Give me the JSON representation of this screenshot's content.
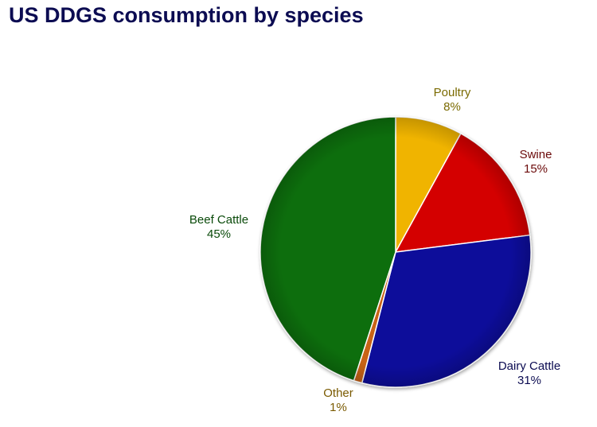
{
  "title": "US DDGS consumption by species",
  "chart_data": {
    "type": "pie",
    "title": "US DDGS consumption by species",
    "categories": [
      "Poultry",
      "Swine",
      "Dairy Cattle",
      "Other",
      "Beef Cattle"
    ],
    "values": [
      8,
      15,
      31,
      1,
      45
    ],
    "unit": "%",
    "colors": [
      "#f0b400",
      "#d40000",
      "#0a0a9a",
      "#c86414",
      "#0b6e0b"
    ],
    "label_colors": [
      "#7a6a00",
      "#6b0a0a",
      "#0c0c52",
      "#7a5a00",
      "#0a4a0a"
    ],
    "start_angle_deg": 0,
    "direction": "clockwise",
    "legend": "none (direct labels)"
  },
  "labels": [
    {
      "name": "Poultry",
      "pct": "8%"
    },
    {
      "name": "Swine",
      "pct": "15%"
    },
    {
      "name": "Dairy Cattle",
      "pct": "31%"
    },
    {
      "name": "Other",
      "pct": "1%"
    },
    {
      "name": "Beef Cattle",
      "pct": "45%"
    }
  ]
}
